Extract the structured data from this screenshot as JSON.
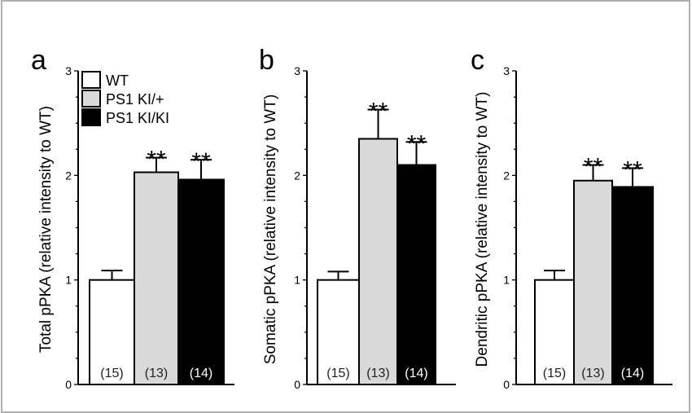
{
  "chart_data": [
    {
      "type": "bar",
      "panel_label": "a",
      "ylabel": "Total pPKA (relative intensity to WT)",
      "ylim": [
        0,
        3
      ],
      "yticks": [
        "0",
        "1",
        "2",
        "3"
      ],
      "categories": [
        "WT",
        "PS1 KI/+",
        "PS1 KI/KI"
      ],
      "values": [
        1.0,
        2.03,
        1.96
      ],
      "error_upper": [
        1.09,
        2.17,
        2.15
      ],
      "n_labels": [
        "(15)",
        "(13)",
        "(14)"
      ],
      "significance": [
        "",
        "**",
        "**"
      ],
      "legend": [
        "WT",
        "PS1 KI/+",
        "PS1 KI/KI"
      ],
      "legend_position": "top-left"
    },
    {
      "type": "bar",
      "panel_label": "b",
      "ylabel": "Somatic pPKA (relative intensity to WT)",
      "ylim": [
        0,
        3
      ],
      "yticks": [
        "0",
        "1",
        "2",
        "3"
      ],
      "categories": [
        "WT",
        "PS1 KI/+",
        "PS1 KI/KI"
      ],
      "values": [
        1.0,
        2.35,
        2.1
      ],
      "error_upper": [
        1.08,
        2.63,
        2.32
      ],
      "n_labels": [
        "(15)",
        "(13)",
        "(14)"
      ],
      "significance": [
        "",
        "**",
        "**"
      ]
    },
    {
      "type": "bar",
      "panel_label": "c",
      "ylabel": "Dendritic pPKA (relative intensity to WT)",
      "ylim": [
        0,
        3
      ],
      "yticks": [
        "0",
        "1",
        "2",
        "3"
      ],
      "categories": [
        "WT",
        "PS1 KI/+",
        "PS1 KI/KI"
      ],
      "values": [
        1.0,
        1.95,
        1.89
      ],
      "error_upper": [
        1.09,
        2.1,
        2.07
      ],
      "n_labels": [
        "(15)",
        "(13)",
        "(14)"
      ],
      "significance": [
        "",
        "**",
        "**"
      ]
    }
  ],
  "colors": {
    "WT": "#ffffff",
    "PS1 KI/+": "#d9d9d9",
    "PS1 KI/KI": "#000000",
    "frame": "#b0b0b0"
  }
}
